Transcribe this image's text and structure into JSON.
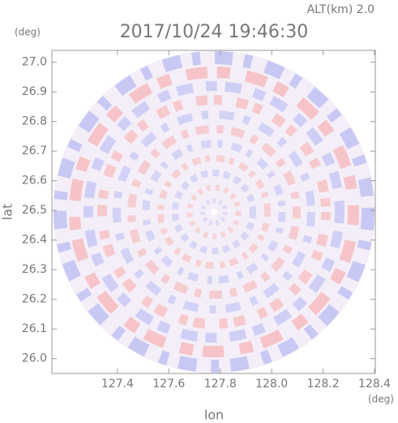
{
  "chart_data": {
    "type": "radar-ppi",
    "title": "2017/10/24 19:46:30",
    "subtitle": "ALT(km) 2.0",
    "x_label": "lon",
    "x_unit": "(deg)",
    "y_label": "lat",
    "y_unit": "(deg)",
    "xlim": [
      127.145,
      128.403
    ],
    "ylim": [
      25.95,
      27.04
    ],
    "xticks": [
      127.4,
      127.6,
      127.8,
      {
        "value": 128.0,
        "label": "128.0"
      },
      128.2,
      128.4
    ],
    "yticks": [
      {
        "value": 26.0,
        "label": "26.0"
      },
      26.1,
      26.2,
      26.3,
      26.4,
      26.5,
      26.6,
      26.7,
      26.8,
      26.9,
      {
        "value": 27.0,
        "label": "27.0"
      }
    ]
  }
}
